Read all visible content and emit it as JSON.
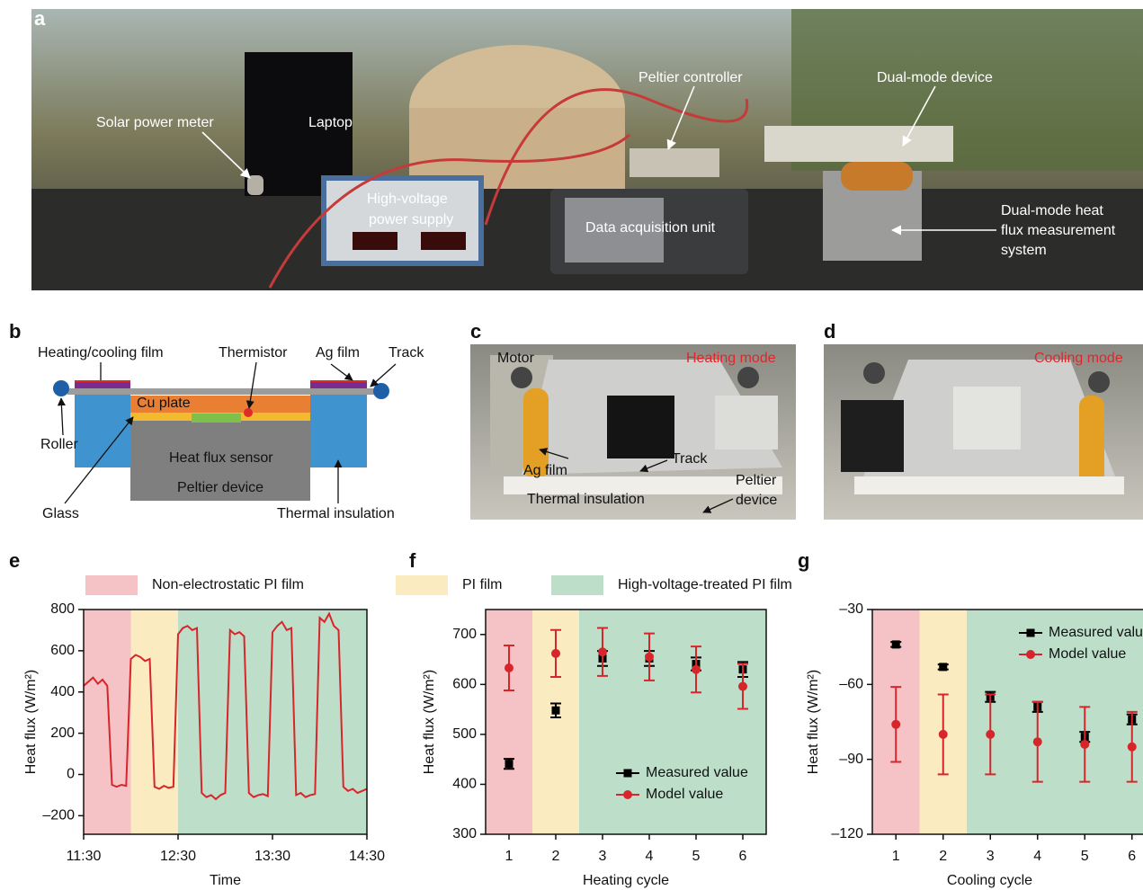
{
  "figure": {
    "panel_a": {
      "label": "a",
      "solar_meter": "Solar power meter",
      "laptop": "Laptop",
      "peltier_controller": "Peltier controller",
      "dual_mode_device": "Dual-mode device",
      "power_supply": [
        "High-voltage",
        "power supply"
      ],
      "daq": "Data acquisition unit",
      "measurement_system": [
        "Dual-mode heat",
        "flux measurement",
        "system"
      ]
    },
    "panel_b": {
      "label": "b",
      "film": "Heating/cooling film",
      "thermistor": "Thermistor",
      "ag_film": "Ag film",
      "track": "Track",
      "cu_plate": "Cu plate",
      "roller": "Roller",
      "sensor": "Heat flux sensor",
      "peltier": "Peltier device",
      "glass": "Glass",
      "insulation": "Thermal insulation"
    },
    "panel_c": {
      "label": "c",
      "motor": "Motor",
      "mode": "Heating mode",
      "ag_film": "Ag film",
      "track": "Track",
      "insulation": "Thermal insulation",
      "peltier": [
        "Peltier",
        "device"
      ]
    },
    "panel_d": {
      "label": "d",
      "mode": "Cooling mode"
    },
    "legend": [
      {
        "name": "Non-electrostatic PI film",
        "color": "#f5c3c5"
      },
      {
        "name": "PI film",
        "color": "#fbebc0"
      },
      {
        "name": "High-voltage-treated PI film",
        "color": "#bddfca"
      }
    ]
  },
  "chart_data": [
    {
      "label": "e",
      "type": "line",
      "xlabel": "Time",
      "ylabel": "Heat flux (W/m²)",
      "x": [
        "11:30",
        "11:33",
        "11:36",
        "11:39",
        "11:42",
        "11:45",
        "11:48",
        "11:51",
        "11:54",
        "11:57",
        "12:00",
        "12:03",
        "12:06",
        "12:09",
        "12:12",
        "12:15",
        "12:18",
        "12:21",
        "12:24",
        "12:27",
        "12:30",
        "12:33",
        "12:36",
        "12:39",
        "12:42",
        "12:45",
        "12:48",
        "12:51",
        "12:54",
        "12:57",
        "13:00",
        "13:03",
        "13:06",
        "13:09",
        "13:12",
        "13:15",
        "13:18",
        "13:21",
        "13:24",
        "13:27",
        "13:30",
        "13:33",
        "13:36",
        "13:39",
        "13:42",
        "13:45",
        "13:48",
        "13:51",
        "13:54",
        "13:57",
        "14:00",
        "14:03",
        "14:06",
        "14:09",
        "14:12",
        "14:15",
        "14:18",
        "14:21",
        "14:24",
        "14:27",
        "14:30"
      ],
      "series": [
        {
          "color": "#d7262b",
          "values": [
            430,
            450,
            470,
            440,
            460,
            430,
            -50,
            -60,
            -50,
            -55,
            560,
            580,
            570,
            550,
            560,
            -60,
            -70,
            -55,
            -65,
            -60,
            680,
            710,
            720,
            700,
            710,
            -90,
            -110,
            -100,
            -120,
            -100,
            -90,
            700,
            680,
            690,
            670,
            -90,
            -110,
            -100,
            -95,
            -105,
            690,
            720,
            740,
            700,
            710,
            -100,
            -90,
            -110,
            -100,
            -95,
            760,
            740,
            780,
            720,
            700,
            -60,
            -80,
            -70,
            -90,
            -80,
            -70
          ]
        }
      ],
      "xlim": [
        "11:30",
        "14:30"
      ],
      "xticks": [
        "11:30",
        "12:30",
        "13:30",
        "14:30"
      ],
      "ylim": [
        -290,
        800
      ],
      "yticks": [
        {
          "value": -200,
          "label": "–200"
        },
        0,
        200,
        400,
        600,
        800
      ],
      "shading": [
        {
          "from": "11:30",
          "to": "12:00",
          "color": "#f5c3c5"
        },
        {
          "from": "12:00",
          "to": "12:30",
          "color": "#fbebc0"
        },
        {
          "from": "12:30",
          "to": "14:30",
          "color": "#bddfca"
        }
      ]
    },
    {
      "label": "f",
      "type": "errorbar",
      "xlabel": "Heating cycle",
      "ylabel": "Heat flux (W/m²)",
      "x": [
        1,
        2,
        3,
        4,
        5,
        6
      ],
      "series": [
        {
          "name": "Measured value",
          "color": "#000000",
          "marker": "square",
          "values": [
            441,
            548,
            652,
            652,
            641,
            630
          ],
          "errors": [
            10,
            14,
            15,
            15,
            13,
            15
          ]
        },
        {
          "name": "Model value",
          "color": "#d7262b",
          "marker": "circle",
          "values": [
            633,
            662,
            665,
            655,
            630,
            596
          ],
          "errors": [
            45,
            47,
            48,
            47,
            46,
            45
          ]
        }
      ],
      "xlim": [
        0.5,
        6.5
      ],
      "xticks": [
        1,
        2,
        3,
        4,
        5,
        6
      ],
      "ylim": [
        300,
        750
      ],
      "yticks": [
        300,
        400,
        500,
        600,
        700
      ],
      "legend": "lower right",
      "shading": [
        {
          "from": 0.5,
          "to": 1.5,
          "color": "#f5c3c5"
        },
        {
          "from": 1.5,
          "to": 2.5,
          "color": "#fbebc0"
        },
        {
          "from": 2.5,
          "to": 6.5,
          "color": "#bddfca"
        }
      ]
    },
    {
      "label": "g",
      "type": "errorbar",
      "xlabel": "Cooling cycle",
      "ylabel": "Heat flux (W/m²)",
      "x": [
        1,
        2,
        3,
        4,
        5,
        6
      ],
      "series": [
        {
          "name": "Measured value",
          "color": "#000000",
          "marker": "square",
          "values": [
            -44,
            -53,
            -65,
            -69,
            -81,
            -74
          ],
          "errors": [
            1,
            1,
            2,
            2,
            2,
            2
          ]
        },
        {
          "name": "Model value",
          "color": "#d7262b",
          "marker": "circle",
          "values": [
            -76,
            -80,
            -80,
            -83,
            -84,
            -85
          ],
          "errors": [
            15,
            16,
            16,
            16,
            15,
            14
          ]
        }
      ],
      "xlim": [
        0.5,
        6.5
      ],
      "xticks": [
        1,
        2,
        3,
        4,
        5,
        6
      ],
      "ylim": [
        -120,
        -30
      ],
      "yticks": [
        {
          "value": -120,
          "label": "–120"
        },
        {
          "value": -90,
          "label": "–90"
        },
        {
          "value": -60,
          "label": "–60"
        },
        {
          "value": -30,
          "label": "–30"
        }
      ],
      "legend": "upper right",
      "shading": [
        {
          "from": 0.5,
          "to": 1.5,
          "color": "#f5c3c5"
        },
        {
          "from": 1.5,
          "to": 2.5,
          "color": "#fbebc0"
        },
        {
          "from": 2.5,
          "to": 6.5,
          "color": "#bddfca"
        }
      ]
    }
  ]
}
